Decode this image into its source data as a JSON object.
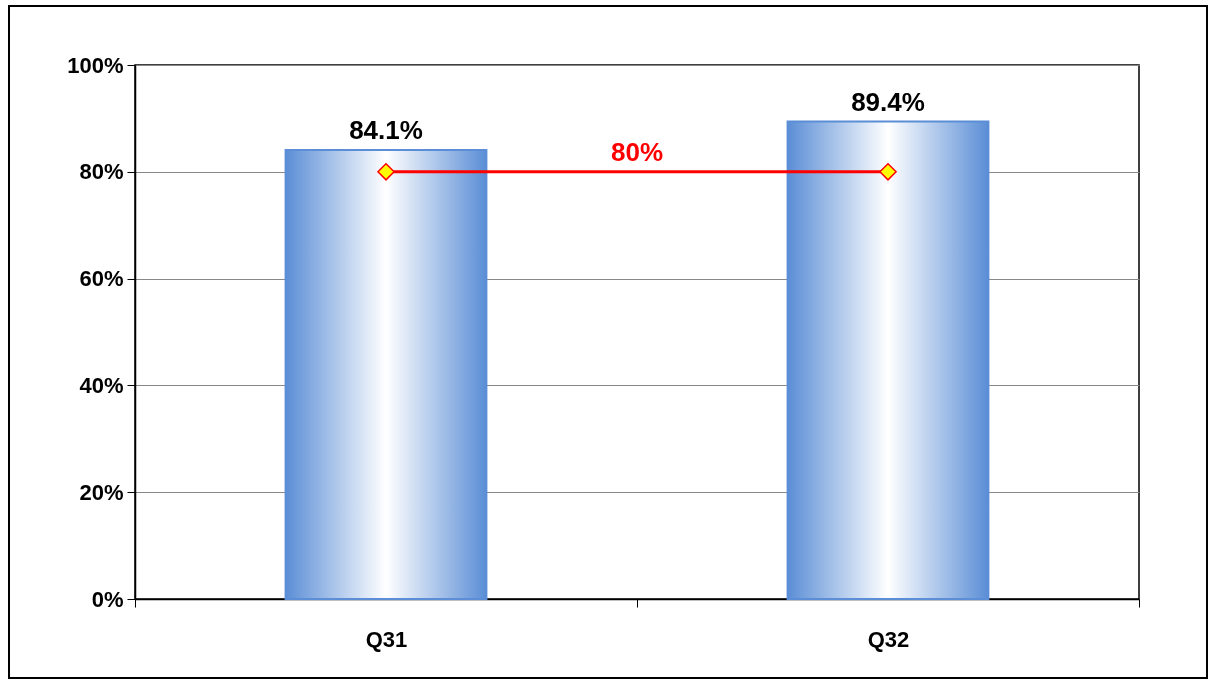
{
  "chart_data": {
    "type": "bar",
    "categories": [
      "Q31",
      "Q32"
    ],
    "series": [
      {
        "color": "#5b8ed6",
        "values": [
          84.1,
          89.4
        ],
        "value_labels": [
          "84.1%",
          "89.4%"
        ]
      },
      {
        "type": "line",
        "color": "#ff0000",
        "values": [
          80,
          80
        ]
      }
    ],
    "marker": "diamond",
    "annotations": [
      {
        "text": "80%",
        "y": 80
      }
    ],
    "ylim": [
      0,
      100
    ],
    "yticks": [
      {
        "value": 0,
        "label": "0%"
      },
      {
        "value": 20,
        "label": "20%"
      },
      {
        "value": 40,
        "label": "40%"
      },
      {
        "value": 60,
        "label": "60%"
      },
      {
        "value": 80,
        "label": "80%"
      },
      {
        "value": 100,
        "label": "100%"
      }
    ],
    "grid": "y"
  }
}
